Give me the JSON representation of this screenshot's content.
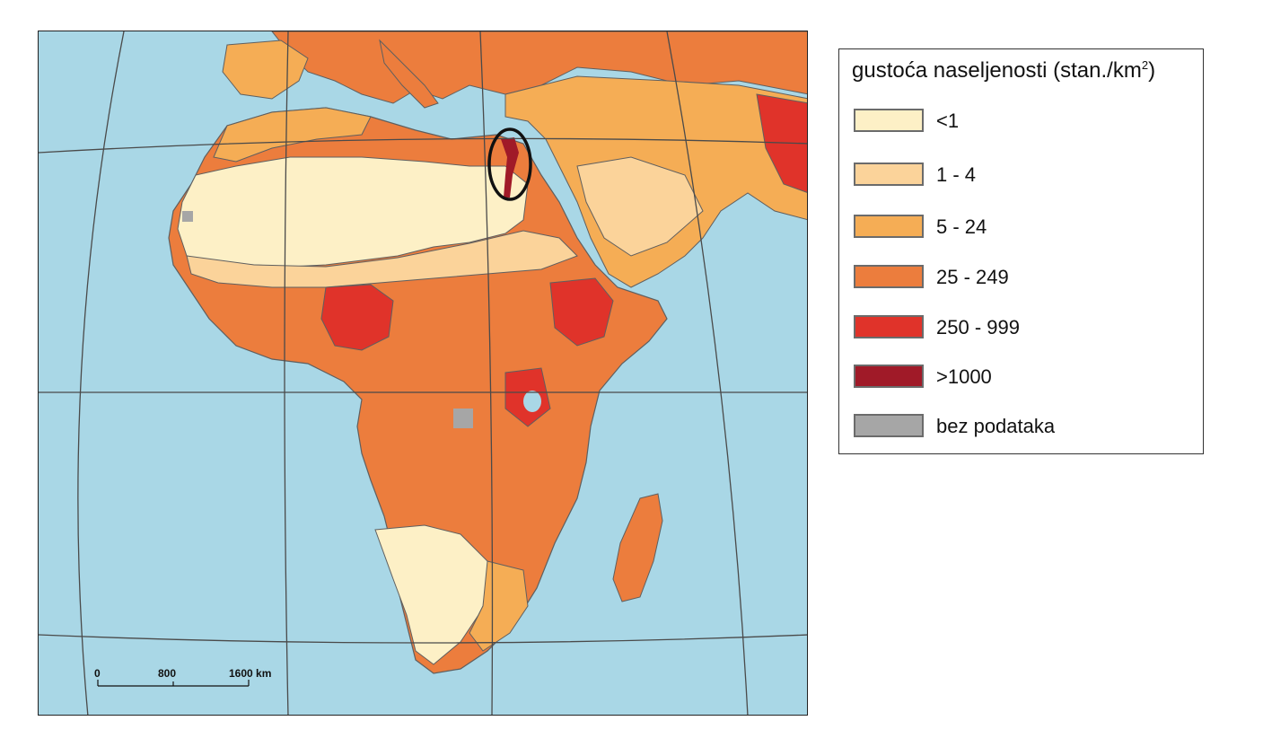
{
  "legend": {
    "title": "gustoća naseljenosti (stan./km",
    "title_sup": "2",
    "title_close": ")",
    "classes": [
      {
        "label": "<1",
        "color": "#fdf0c6"
      },
      {
        "label": "1 - 4",
        "color": "#fbd39a"
      },
      {
        "label": "5 - 24",
        "color": "#f5ad55"
      },
      {
        "label": "25 - 249",
        "color": "#ec7d3d"
      },
      {
        "label": "250 - 999",
        "color": "#e0332a"
      },
      {
        "label": ">1000",
        "color": "#a01a28"
      },
      {
        "label": "bez podataka",
        "color": "#a6a6a6"
      }
    ]
  },
  "scale_bar": {
    "ticks": [
      "0",
      "800",
      "1600 km"
    ]
  },
  "colors": {
    "ocean": "#a9d7e6",
    "border": "#5f5f5f",
    "graticule": "#4a4a4a",
    "highlight_ellipse": "#111111"
  }
}
